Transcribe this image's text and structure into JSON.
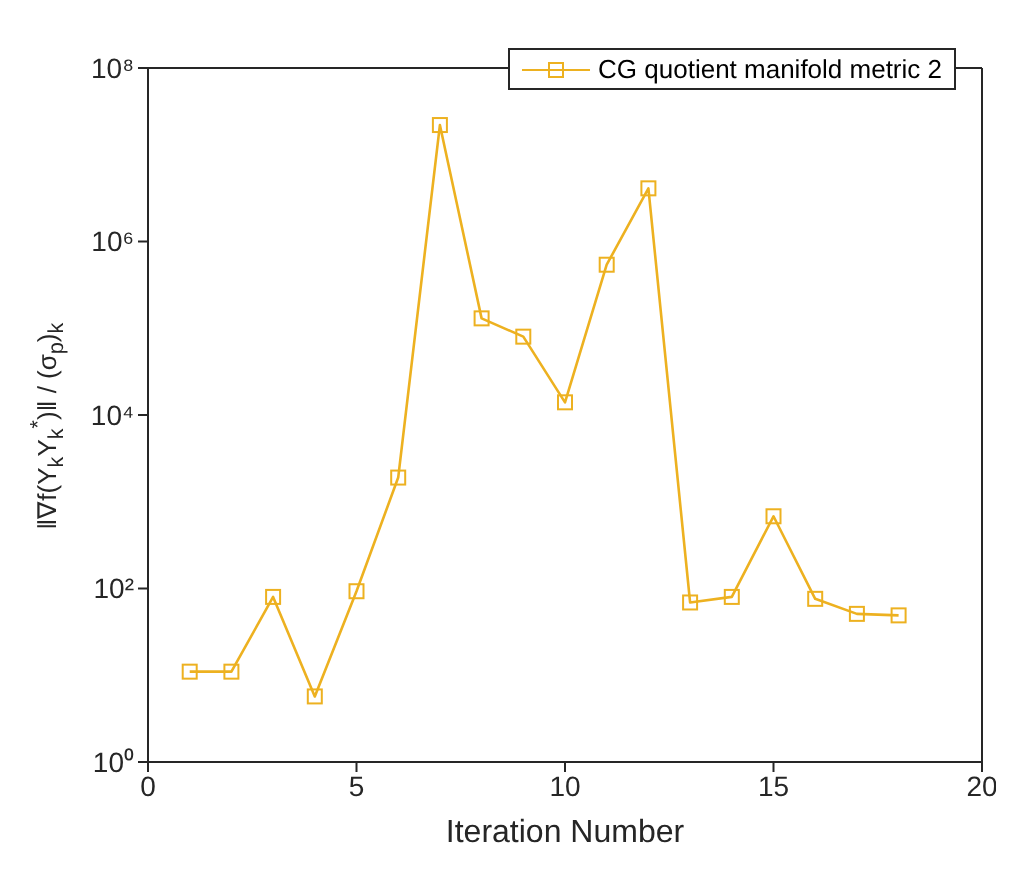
{
  "chart_data": {
    "type": "line",
    "xlabel": "Iteration Number",
    "ylabel": "‖∇f(Y$_{k}$Y$_{k}$$^{*}$)‖ / (σ$_{p}$)$_{k}$",
    "x": [
      1,
      2,
      3,
      4,
      5,
      6,
      7,
      8,
      9,
      10,
      11,
      12,
      13,
      14,
      15,
      16,
      17,
      18
    ],
    "series": [
      {
        "name": "CG quotient manifold metric 2",
        "color": "#edb120",
        "values": [
          11,
          11,
          80,
          5.7,
          93,
          1900,
          22000000,
          130000,
          80000,
          14000,
          540000,
          4100000,
          69,
          80,
          680,
          76,
          51,
          49
        ]
      }
    ],
    "xlim": [
      0,
      20
    ],
    "xticks": [
      0,
      5,
      10,
      15,
      20
    ],
    "ylim": [
      1,
      100000000
    ],
    "yticks": [
      {
        "value": 1,
        "label": "10⁰"
      },
      {
        "value": 100,
        "label": "10²"
      },
      {
        "value": 10000,
        "label": "10⁴"
      },
      {
        "value": 1000000,
        "label": "10⁶"
      },
      {
        "value": 100000000,
        "label": "10⁸"
      }
    ],
    "log": "y",
    "grid": false,
    "legend": "top right",
    "marker": "square",
    "line_style": "solid"
  }
}
